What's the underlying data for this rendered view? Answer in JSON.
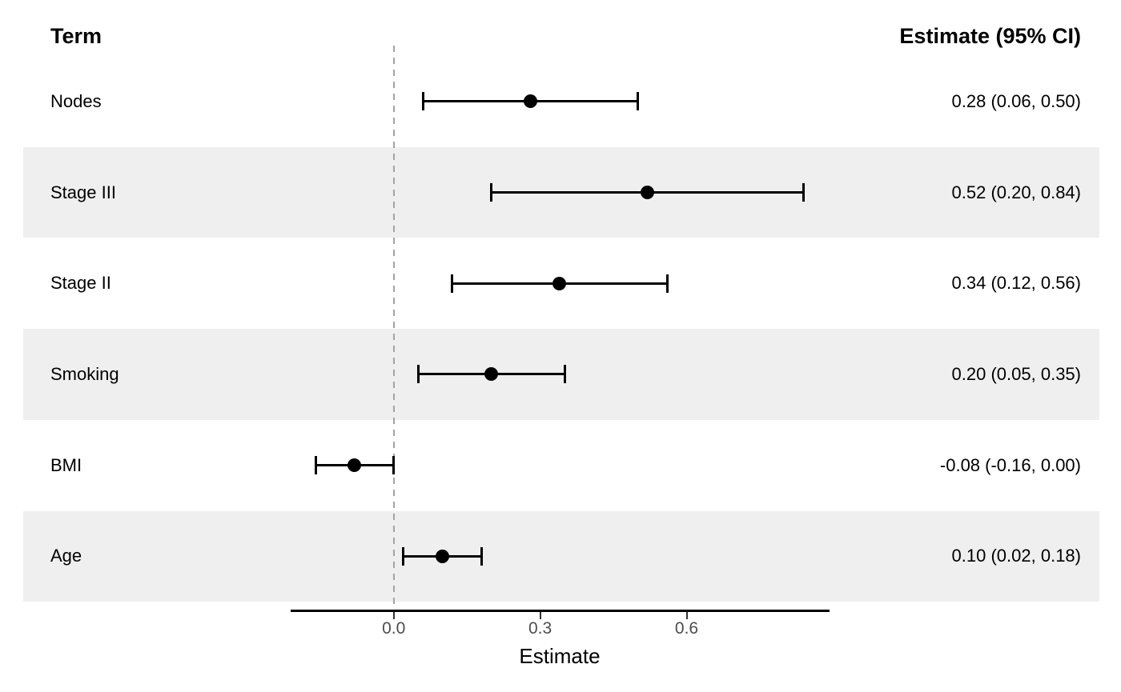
{
  "header": {
    "term": "Term",
    "estimate": "Estimate (95% CI)"
  },
  "chart_data": {
    "type": "scatter",
    "subtype": "forest-plot",
    "title": "",
    "xlabel": "Estimate",
    "ylabel": "",
    "xlim": [
      -0.21,
      0.89
    ],
    "reference_line": 0,
    "grid": false,
    "x_ticks": [
      0.0,
      0.3,
      0.6
    ],
    "x_tick_labels": [
      "0.0",
      "0.3",
      "0.6"
    ],
    "rows": [
      {
        "term": "Nodes",
        "estimate": 0.28,
        "ci_low": 0.06,
        "ci_high": 0.5,
        "label": "0.28 (0.06, 0.50)",
        "striped": false
      },
      {
        "term": "Stage III",
        "estimate": 0.52,
        "ci_low": 0.2,
        "ci_high": 0.84,
        "label": "0.52 (0.20, 0.84)",
        "striped": true
      },
      {
        "term": "Stage II",
        "estimate": 0.34,
        "ci_low": 0.12,
        "ci_high": 0.56,
        "label": "0.34 (0.12, 0.56)",
        "striped": false
      },
      {
        "term": "Smoking",
        "estimate": 0.2,
        "ci_low": 0.05,
        "ci_high": 0.35,
        "label": "0.20 (0.05, 0.35)",
        "striped": true
      },
      {
        "term": "BMI",
        "estimate": -0.08,
        "ci_low": -0.16,
        "ci_high": 0.0,
        "label": "-0.08 (-0.16, 0.00)",
        "striped": false
      },
      {
        "term": "Age",
        "estimate": 0.1,
        "ci_low": 0.02,
        "ci_high": 0.18,
        "label": "0.10 (0.02, 0.18)",
        "striped": true
      }
    ],
    "colors": {
      "stripe": "#efefef",
      "reference_line": "#a3a3a3",
      "point": "#000000",
      "ci": "#000000",
      "axis_text": "#4d4d4d"
    }
  }
}
